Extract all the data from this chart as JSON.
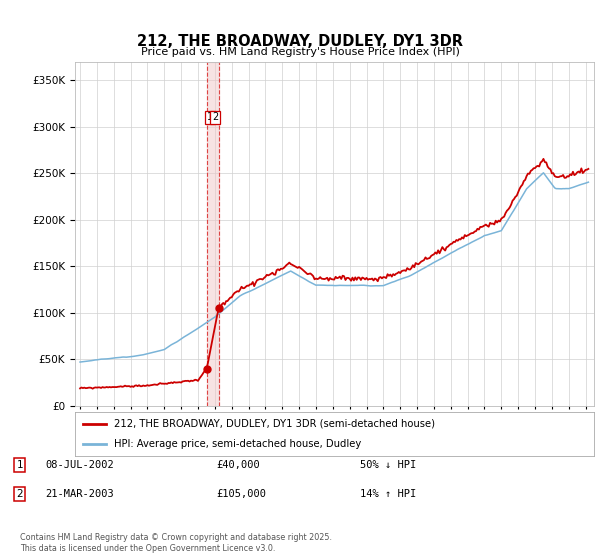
{
  "title": "212, THE BROADWAY, DUDLEY, DY1 3DR",
  "subtitle": "Price paid vs. HM Land Registry's House Price Index (HPI)",
  "legend_line1": "212, THE BROADWAY, DUDLEY, DY1 3DR (semi-detached house)",
  "legend_line2": "HPI: Average price, semi-detached house, Dudley",
  "sale1_label": "1",
  "sale1_date": "08-JUL-2002",
  "sale1_price": "£40,000",
  "sale1_hpi": "50% ↓ HPI",
  "sale2_label": "2",
  "sale2_date": "21-MAR-2003",
  "sale2_price": "£105,000",
  "sale2_hpi": "14% ↑ HPI",
  "footnote": "Contains HM Land Registry data © Crown copyright and database right 2025.\nThis data is licensed under the Open Government Licence v3.0.",
  "hpi_color": "#7ab4d8",
  "price_color": "#cc0000",
  "vline_color": "#dd4444",
  "vfill_color": "#f0c8c8",
  "marker1_date_x": 2002.52,
  "marker2_date_x": 2003.22,
  "marker1_price": 40000,
  "marker2_price": 105000,
  "ylim_min": 0,
  "ylim_max": 370000,
  "xlim_min": 1994.7,
  "xlim_max": 2025.5
}
